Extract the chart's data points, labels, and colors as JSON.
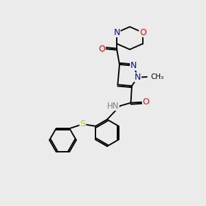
{
  "background_color": "#ebebeb",
  "bond_color": "#000000",
  "atom_colors": {
    "N": "#0000ff",
    "O": "#ff0000",
    "S": "#cccc00",
    "C": "#000000",
    "H": "#808080"
  },
  "figsize": [
    3.0,
    3.0
  ],
  "dpi": 100
}
